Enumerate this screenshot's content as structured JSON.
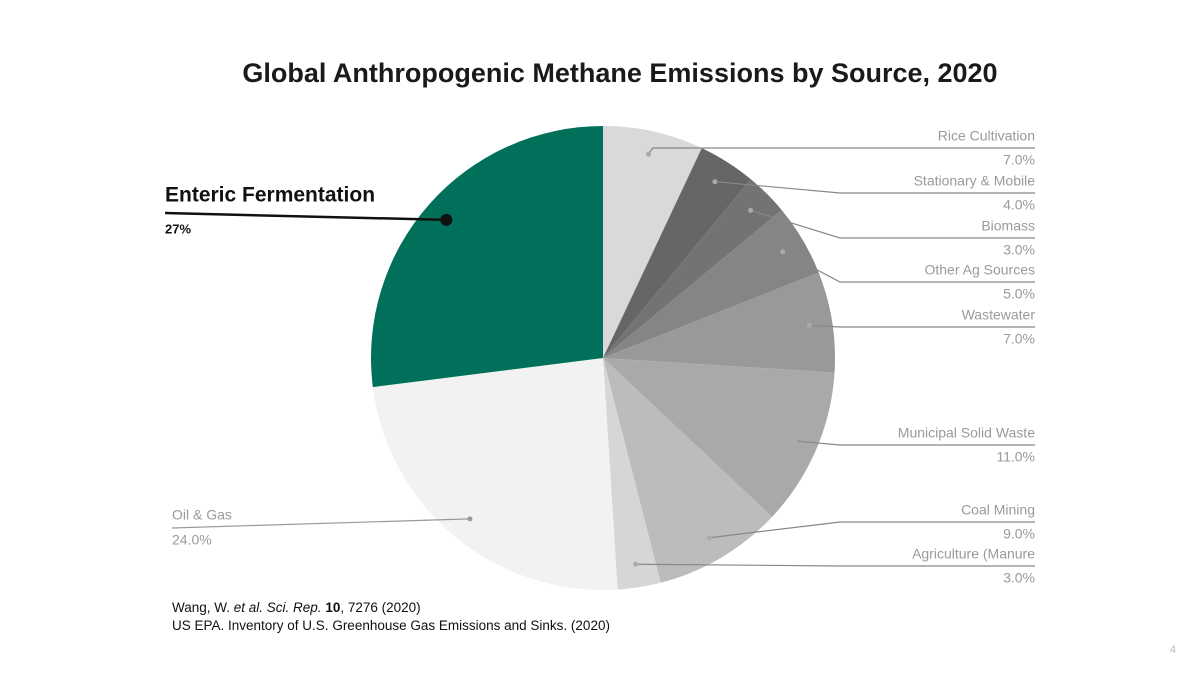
{
  "chart_data": {
    "type": "pie",
    "title": "Global Anthropogenic Methane Emissions by Source, 2020",
    "categories": [
      "Rice Cultivation",
      "Stationary & Mobile",
      "Biomass",
      "Other Ag Sources",
      "Wastewater",
      "Municipal Solid Waste",
      "Coal Mining",
      "Agriculture (Manure",
      "Oil & Gas",
      "Enteric Fermentation"
    ],
    "values": [
      7,
      4,
      3,
      5,
      7,
      11,
      9,
      3,
      24,
      27
    ],
    "value_labels": [
      "7.0%",
      "4.0%",
      "3.0%",
      "5.0%",
      "7.0%",
      "11.0%",
      "9.0%",
      "3.0%",
      "24.0%",
      "27%"
    ],
    "colors": [
      "#d9d9d9",
      "#666666",
      "#737373",
      "#858585",
      "#999999",
      "#a9a9a9",
      "#bcbcbc",
      "#d6d6d6",
      "#f2f2f2",
      "#00705a"
    ],
    "sources": [
      [
        "Wang, W. ",
        "et al. Sci. Rep. ",
        "10",
        ", 7276 (2020)"
      ],
      [
        "US EPA. Inventory of U.S. Greenhouse Gas Emissions and Sinks. (2020)"
      ]
    ],
    "page_number": "4"
  }
}
